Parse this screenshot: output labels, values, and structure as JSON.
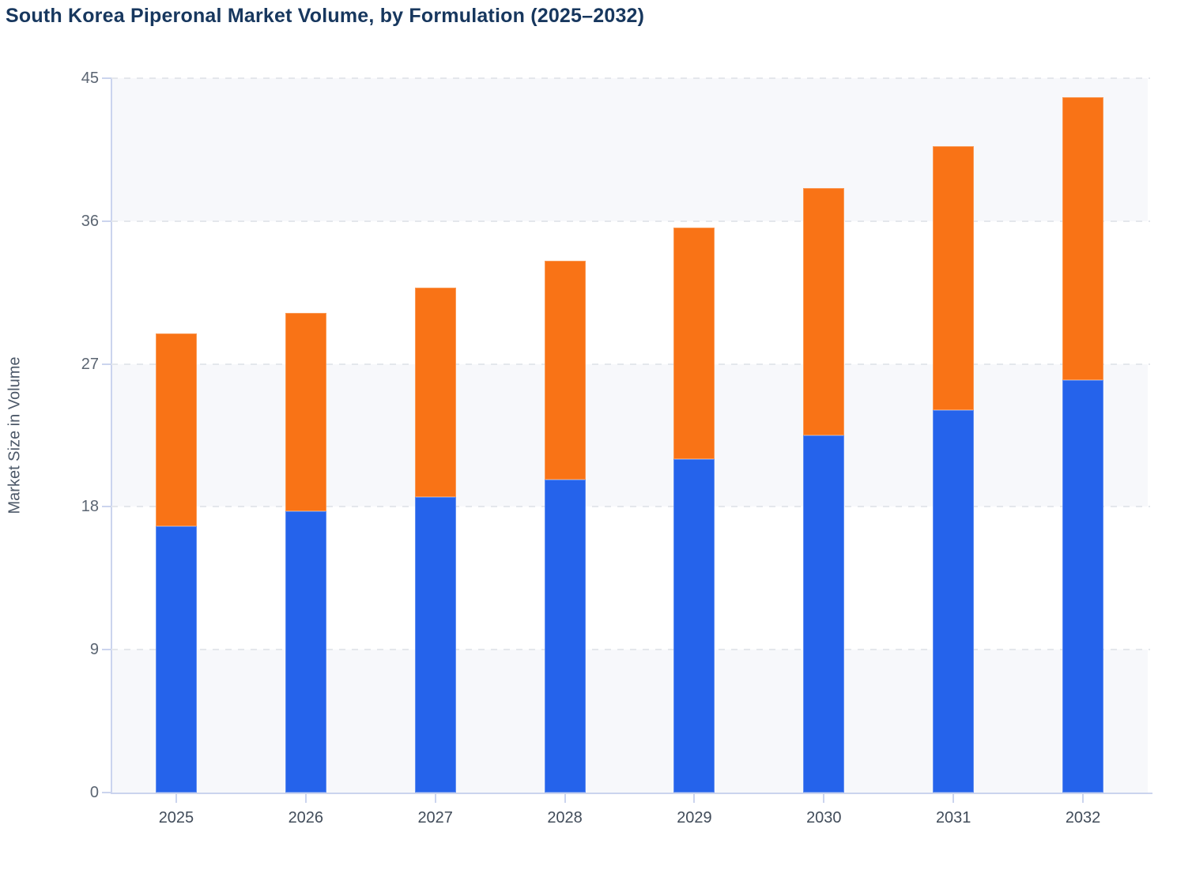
{
  "header": {
    "title": "South Korea Piperonal Market Volume, by Formulation (2025–2032)"
  },
  "chart_data": {
    "type": "bar",
    "stacked": true,
    "title": "South Korea Piperonal Market Volume, by Formulation (2025–2032)",
    "xlabel": "",
    "ylabel": "Market Size in Volume",
    "categories": [
      "2025",
      "2026",
      "2027",
      "2028",
      "2029",
      "2030",
      "2031",
      "2032"
    ],
    "series": [
      {
        "name": "blue",
        "color": "#2563eb",
        "values": [
          16.8,
          17.7,
          18.6,
          19.7,
          21.0,
          22.5,
          24.1,
          26.0
        ]
      },
      {
        "name": "orange",
        "color": "#f97316",
        "values": [
          12.1,
          12.5,
          13.2,
          13.8,
          14.6,
          15.6,
          16.6,
          17.8
        ]
      }
    ],
    "stack_totals": [
      28.9,
      30.2,
      31.8,
      33.5,
      35.6,
      38.1,
      40.7,
      43.8
    ],
    "ylim": [
      0,
      45
    ],
    "yticks": [
      0,
      9,
      18,
      27,
      36,
      45
    ],
    "grid": "horizontal-dashed",
    "legend_position": "none",
    "plot_band_colors": [
      "#f7f8fb",
      "#ffffff"
    ],
    "axis_line_color": "#cbd4ee",
    "gridline_color": "#e4e7ec",
    "title_color": "#17375e",
    "tick_label_color": "#5b6572",
    "category_label_color": "#414c5a"
  }
}
